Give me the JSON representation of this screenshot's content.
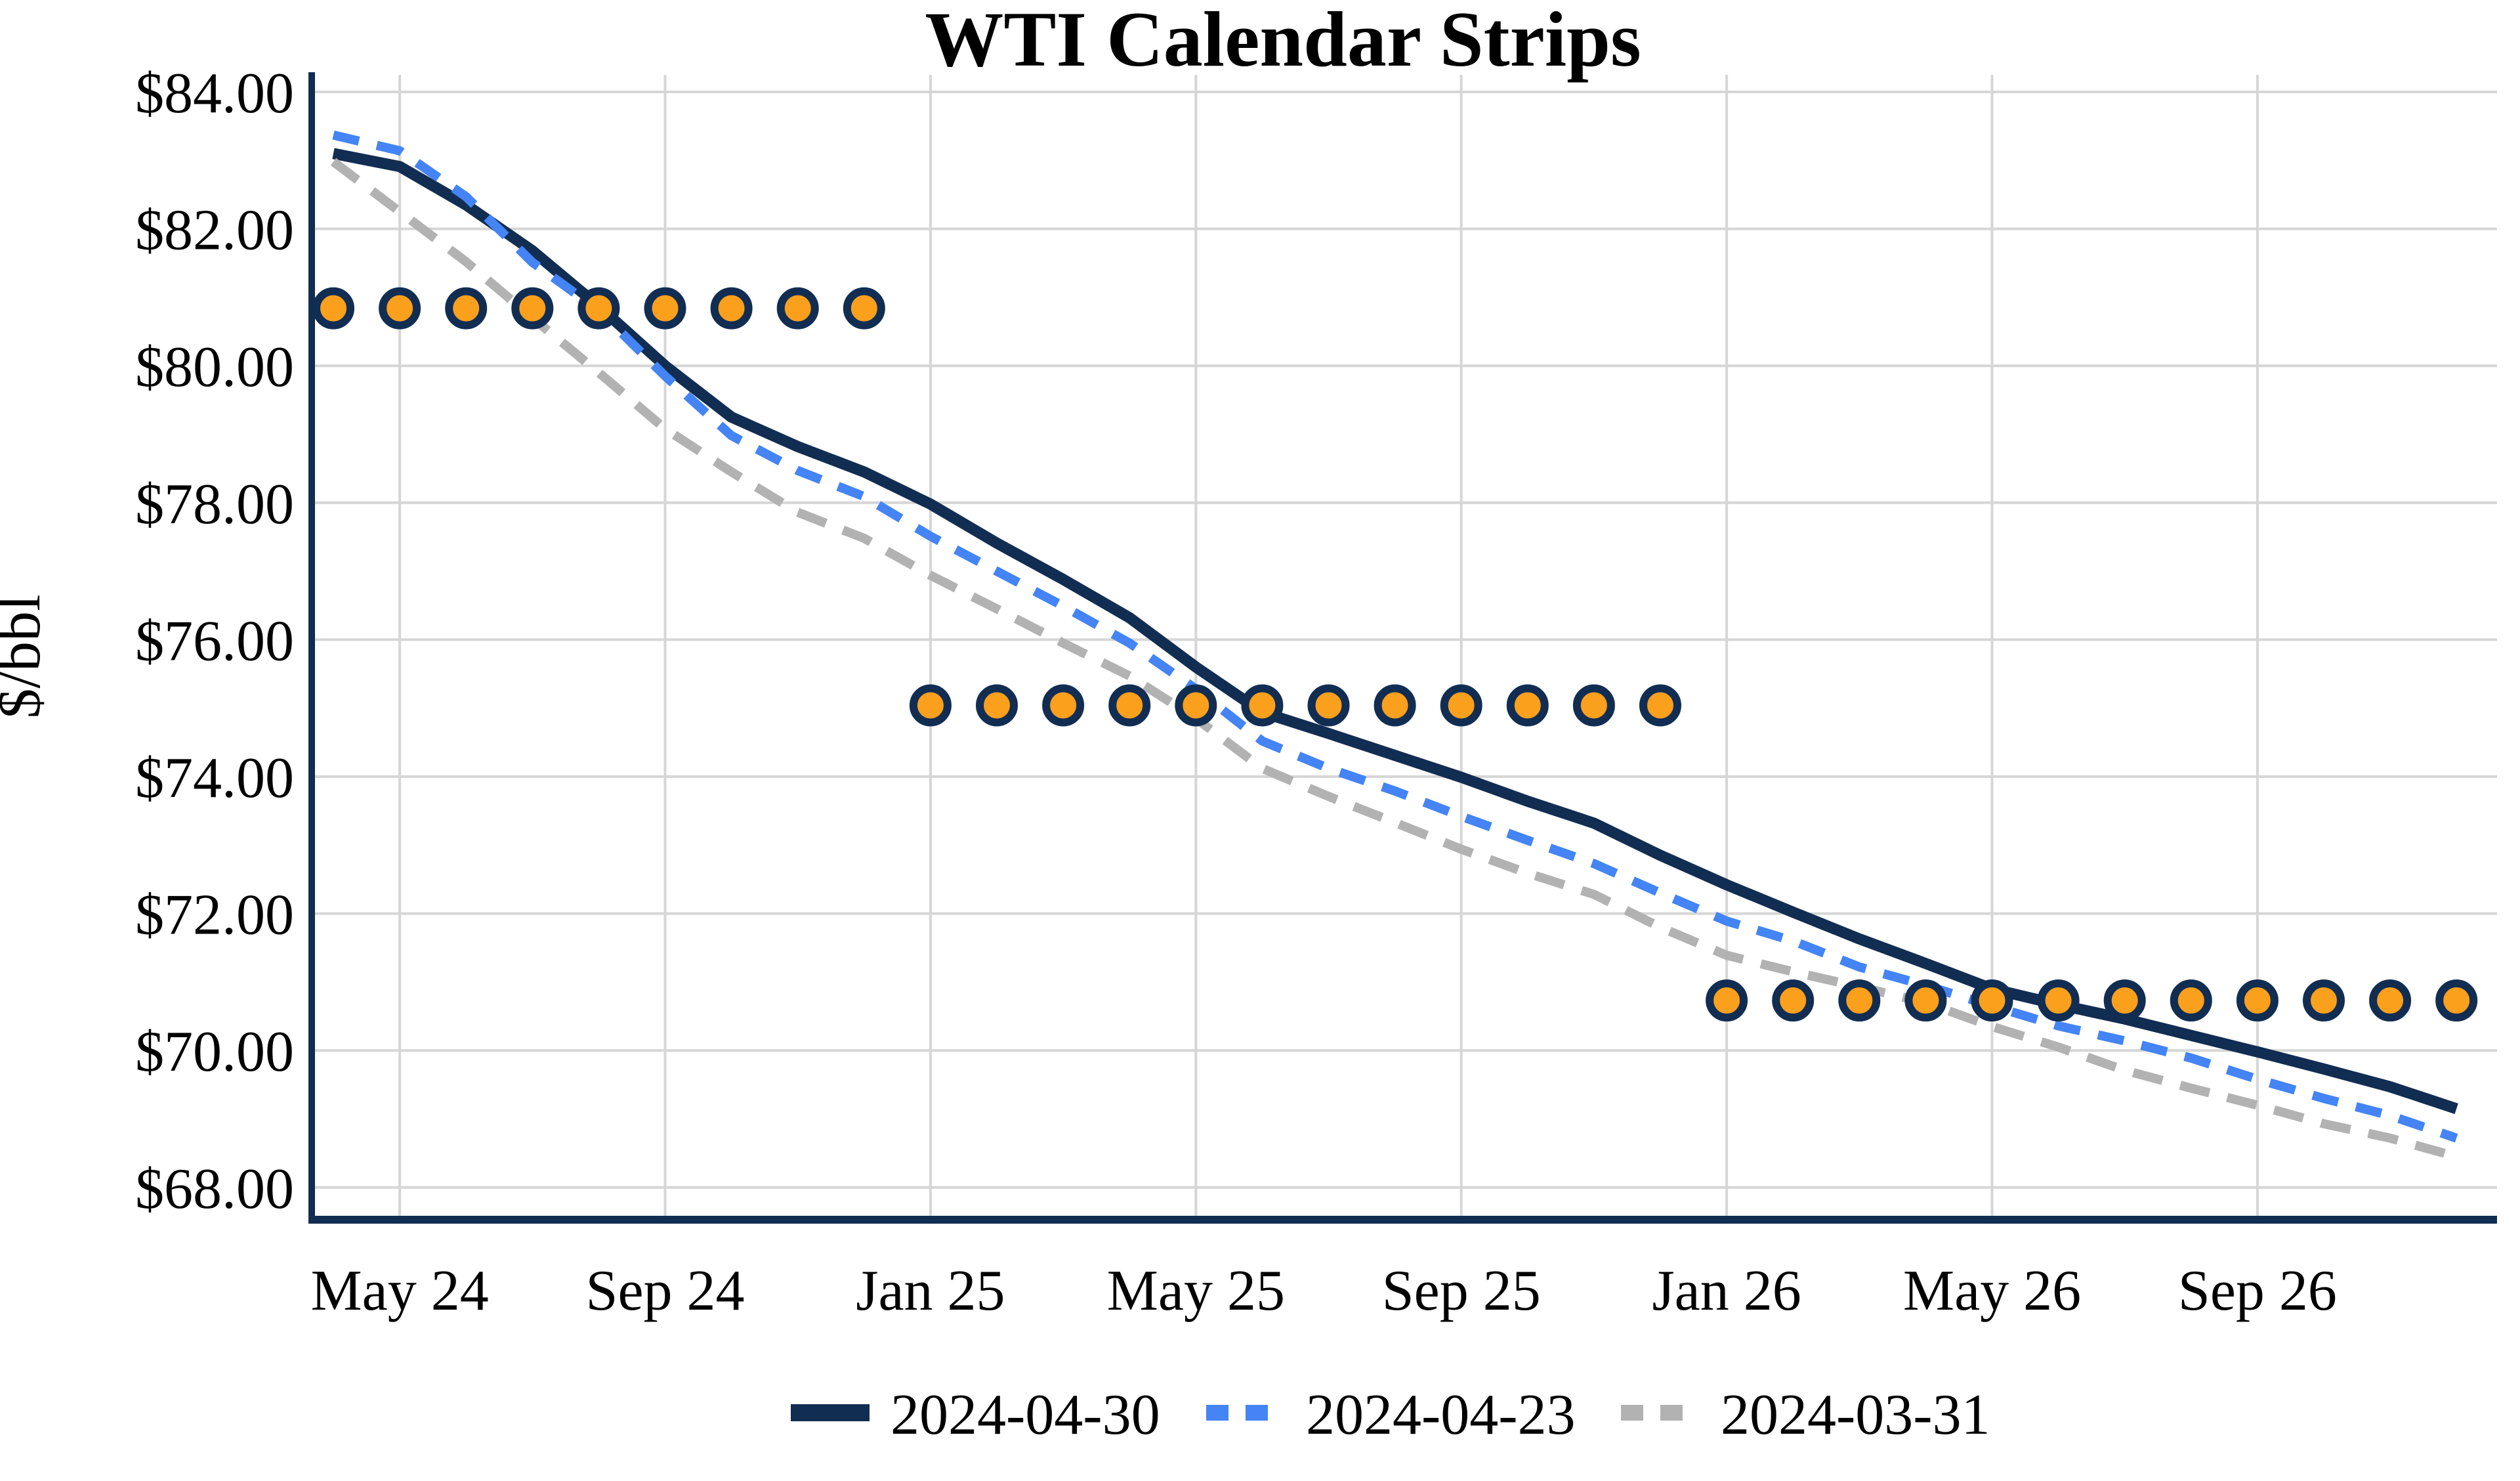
{
  "page": {
    "background": "#ffffff"
  },
  "chart_data": {
    "type": "line",
    "title": "WTI Calendar Strips",
    "xlabel": "",
    "ylabel": "$/bbl",
    "grid": true,
    "legend_position": "bottom-center",
    "ylim": [
      67.53,
      84.25
    ],
    "colors": {
      "navy": "#122d52",
      "blue": "#4484f4",
      "gray": "#b2b2b2",
      "orange": "#fba01c",
      "gridline": "#d6d6d6"
    },
    "x_categories": [
      "Apr 24",
      "May 24",
      "Jun 24",
      "Jul 24",
      "Aug 24",
      "Sep 24",
      "Oct 24",
      "Nov 24",
      "Dec 24",
      "Jan 25",
      "Feb 25",
      "Mar 25",
      "Apr 25",
      "May 25",
      "Jun 25",
      "Jul 25",
      "Aug 25",
      "Sep 25",
      "Oct 25",
      "Nov 25",
      "Dec 25",
      "Jan 26",
      "Feb 26",
      "Mar 26",
      "Apr 26",
      "May 26",
      "Jun 26",
      "Jul 26",
      "Aug 26",
      "Sep 26",
      "Oct 26",
      "Nov 26",
      "Dec 26"
    ],
    "x_ticks": [
      {
        "label": "May 24",
        "month_index": 1
      },
      {
        "label": "Sep 24",
        "month_index": 5
      },
      {
        "label": "Jan 25",
        "month_index": 9
      },
      {
        "label": "May 25",
        "month_index": 13
      },
      {
        "label": "Sep 25",
        "month_index": 17
      },
      {
        "label": "Jan 26",
        "month_index": 21
      },
      {
        "label": "May 26",
        "month_index": 25
      },
      {
        "label": "Sep 26",
        "month_index": 29
      }
    ],
    "y_ticks": [
      {
        "value": 84,
        "label": "$84.00"
      },
      {
        "value": 82,
        "label": "$82.00"
      },
      {
        "value": 80,
        "label": "$80.00"
      },
      {
        "value": 78,
        "label": "$78.00"
      },
      {
        "value": 76,
        "label": "$76.00"
      },
      {
        "value": 74,
        "label": "$74.00"
      },
      {
        "value": 72,
        "label": "$72.00"
      },
      {
        "value": 70,
        "label": "$70.00"
      },
      {
        "value": 68,
        "label": "$68.00"
      }
    ],
    "series": [
      {
        "name": "2024-04-30",
        "type": "line",
        "style": "solid",
        "color": "#122d52",
        "in_legend": true,
        "values": [
          83.1,
          82.91,
          82.35,
          81.68,
          80.87,
          80.0,
          79.25,
          78.82,
          78.45,
          77.98,
          77.41,
          76.88,
          76.32,
          75.6,
          74.94,
          74.63,
          74.31,
          73.99,
          73.64,
          73.32,
          72.85,
          72.42,
          72.02,
          71.63,
          71.27,
          70.9,
          70.67,
          70.46,
          70.22,
          69.98,
          69.73,
          69.47,
          69.15
        ]
      },
      {
        "name": "2024-04-23",
        "type": "line",
        "style": "dashed",
        "color": "#4484f4",
        "in_legend": true,
        "values": [
          83.37,
          83.14,
          82.47,
          81.51,
          80.81,
          79.85,
          78.98,
          78.47,
          78.09,
          77.51,
          77.0,
          76.49,
          75.95,
          75.28,
          74.52,
          74.12,
          73.79,
          73.42,
          73.07,
          72.73,
          72.3,
          71.89,
          71.6,
          71.22,
          70.95,
          70.65,
          70.36,
          70.14,
          69.89,
          69.58,
          69.3,
          69.05,
          68.72
        ]
      },
      {
        "name": "2024-03-31",
        "type": "line",
        "style": "dashed",
        "color": "#b2b2b2",
        "in_legend": true,
        "values": [
          82.98,
          82.25,
          81.52,
          80.7,
          79.9,
          79.08,
          78.45,
          77.86,
          77.48,
          76.94,
          76.45,
          75.95,
          75.47,
          74.85,
          74.12,
          73.71,
          73.33,
          72.94,
          72.59,
          72.28,
          71.8,
          71.39,
          71.15,
          70.93,
          70.7,
          70.35,
          70.05,
          69.71,
          69.45,
          69.2,
          68.93,
          68.72,
          68.45
        ]
      },
      {
        "name": "calendar-strip-levels",
        "type": "scatter",
        "marker": "circle",
        "fill": "#fba01c",
        "stroke": "#122d52",
        "in_legend": false,
        "values": [
          80.84,
          80.84,
          80.84,
          80.84,
          80.84,
          80.84,
          80.84,
          80.84,
          80.84,
          75.04,
          75.04,
          75.04,
          75.04,
          75.04,
          75.04,
          75.04,
          75.04,
          75.04,
          75.04,
          75.04,
          75.04,
          70.73,
          70.73,
          70.73,
          70.73,
          70.73,
          70.73,
          70.73,
          70.73,
          70.73,
          70.73,
          70.73,
          70.73
        ]
      }
    ]
  }
}
